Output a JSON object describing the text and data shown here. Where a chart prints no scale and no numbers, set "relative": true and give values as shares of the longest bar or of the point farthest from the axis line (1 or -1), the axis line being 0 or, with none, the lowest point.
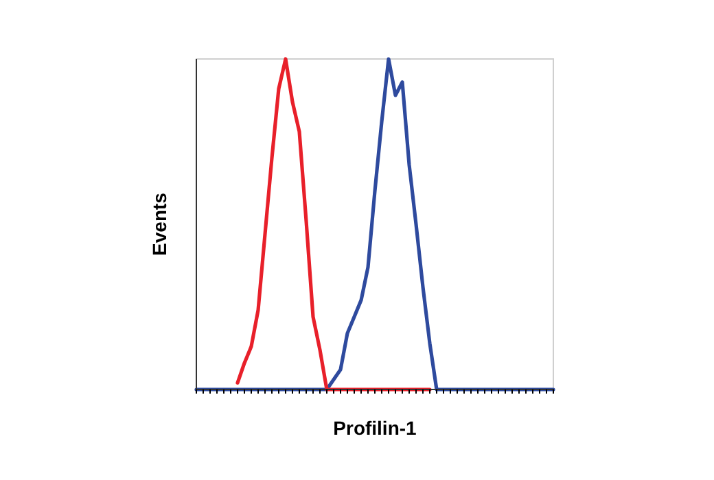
{
  "chart_data": {
    "type": "line",
    "xlabel": "Profilin-1",
    "ylabel": "Events",
    "relative": true,
    "categories": [
      null,
      null,
      null,
      null,
      null,
      null,
      null,
      null,
      null,
      null,
      null,
      null,
      null,
      null,
      null,
      null,
      null,
      null,
      null,
      null,
      null,
      null,
      null,
      null,
      null,
      null,
      null,
      null,
      null,
      null,
      null,
      null,
      null,
      null,
      null,
      null,
      null,
      null,
      null,
      null,
      null,
      null,
      null,
      null,
      null,
      null,
      null,
      null,
      null,
      null,
      null,
      null,
      null
    ],
    "series": [
      {
        "color": "#e8202a",
        "values": [
          null,
          null,
          null,
          null,
          null,
          null,
          0.02,
          0.08,
          0.13,
          0.24,
          0.47,
          0.7,
          0.91,
          1,
          0.87,
          0.78,
          0.51,
          0.22,
          0.12,
          0,
          0,
          0,
          0,
          0,
          0,
          0,
          0,
          0,
          0,
          0,
          0,
          0,
          0,
          0,
          0,
          null,
          null,
          null,
          null,
          null,
          null,
          null,
          null,
          null,
          null,
          null,
          null,
          null,
          null,
          null,
          null,
          null,
          null
        ]
      },
      {
        "color": "#2e4a9e",
        "values": [
          0,
          0,
          0,
          0,
          0,
          0,
          0,
          0,
          0,
          0,
          0,
          0,
          0,
          0,
          0,
          0,
          0,
          0,
          0,
          0,
          0.03,
          0.06,
          0.17,
          0.22,
          0.27,
          0.37,
          0.6,
          0.81,
          1,
          0.89,
          0.93,
          0.68,
          0.5,
          0.31,
          0.14,
          0,
          0,
          0,
          0,
          0,
          0,
          0,
          0,
          0,
          0,
          0,
          0,
          0,
          0,
          0,
          0,
          0,
          0
        ]
      }
    ]
  }
}
